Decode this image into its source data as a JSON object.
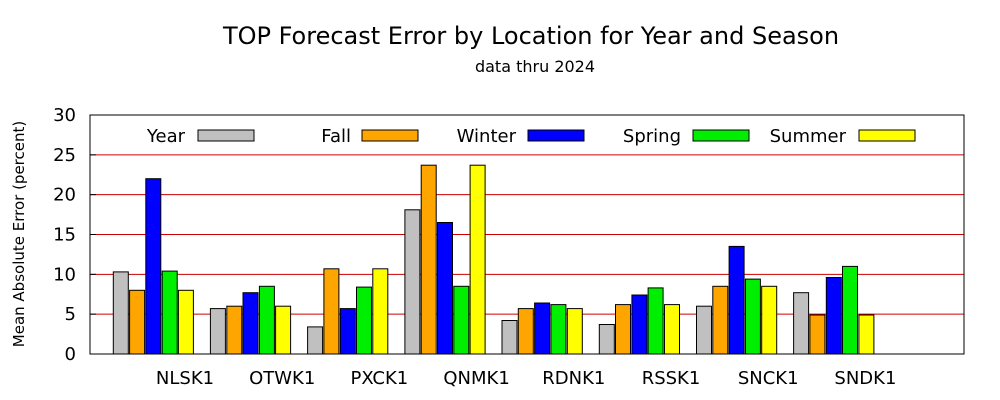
{
  "chart_data": {
    "type": "bar",
    "title": "TOP Forecast Error by Location for Year and Season",
    "subtitle": "data thru 2024",
    "xlabel": "",
    "ylabel": "Mean Absolute Error (percent)",
    "ylim": [
      0,
      30
    ],
    "yticks": [
      0,
      5,
      10,
      15,
      20,
      25,
      30
    ],
    "grid": "horizontal red lines at 5, 10, 15, 20, 25",
    "legend_position": "top inside plot, single row",
    "categories": [
      "NLSK1",
      "OTWK1",
      "PXCK1",
      "QNMK1",
      "RDNK1",
      "RSSK1",
      "SNCK1",
      "SNDK1"
    ],
    "series": [
      {
        "name": "Year",
        "color": "#c0c0c0",
        "values": [
          10.3,
          5.7,
          3.4,
          18.1,
          4.2,
          3.7,
          6.0,
          7.7
        ]
      },
      {
        "name": "Fall",
        "color": "#ffa500",
        "values": [
          8.0,
          6.0,
          10.7,
          23.7,
          5.7,
          6.2,
          8.5,
          4.9
        ]
      },
      {
        "name": "Winter",
        "color": "#0000ff",
        "values": [
          22.0,
          7.7,
          5.7,
          16.5,
          6.4,
          7.4,
          13.5,
          9.6
        ]
      },
      {
        "name": "Spring",
        "color": "#00ee00",
        "values": [
          10.4,
          8.5,
          8.4,
          8.5,
          6.2,
          8.3,
          9.4,
          11.0
        ]
      },
      {
        "name": "Summer",
        "color": "#ffff00",
        "values": [
          8.0,
          6.0,
          10.7,
          23.7,
          5.7,
          6.2,
          8.5,
          4.9
        ]
      }
    ],
    "colors": {
      "grid": "#cc0000",
      "border": "#000000"
    }
  }
}
